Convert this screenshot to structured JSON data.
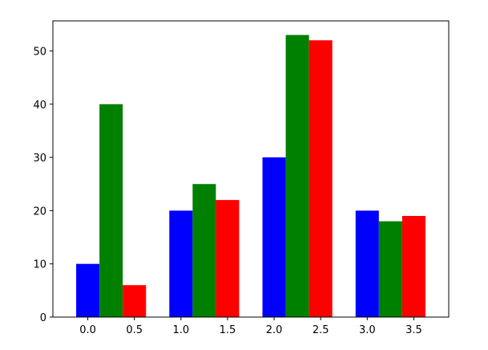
{
  "chart_data": {
    "type": "bar",
    "title": "",
    "xlabel": "",
    "ylabel": "",
    "xlim": [
      -0.375,
      3.875
    ],
    "ylim": [
      0,
      55.65
    ],
    "bar_width": 0.25,
    "group_x": [
      0,
      1,
      2,
      3
    ],
    "series": [
      {
        "values": [
          10,
          20,
          30,
          20
        ],
        "offset": 0.0,
        "color": "#0000ff"
      },
      {
        "values": [
          40,
          25,
          53,
          18
        ],
        "offset": 0.25,
        "color": "#008000"
      },
      {
        "values": [
          6,
          22,
          52,
          19
        ],
        "offset": 0.5,
        "color": "#ff0000"
      }
    ],
    "xticks": [
      {
        "value": 0.0,
        "label": "0.0"
      },
      {
        "value": 0.5,
        "label": "0.5"
      },
      {
        "value": 1.0,
        "label": "1.0"
      },
      {
        "value": 1.5,
        "label": "1.5"
      },
      {
        "value": 2.0,
        "label": "2.0"
      },
      {
        "value": 2.5,
        "label": "2.5"
      },
      {
        "value": 3.0,
        "label": "3.0"
      },
      {
        "value": 3.5,
        "label": "3.5"
      }
    ],
    "yticks": [
      {
        "value": 0,
        "label": "0"
      },
      {
        "value": 10,
        "label": "10"
      },
      {
        "value": 20,
        "label": "20"
      },
      {
        "value": 30,
        "label": "30"
      },
      {
        "value": 40,
        "label": "40"
      },
      {
        "value": 50,
        "label": "50"
      }
    ],
    "grid": false,
    "legend": "none"
  }
}
